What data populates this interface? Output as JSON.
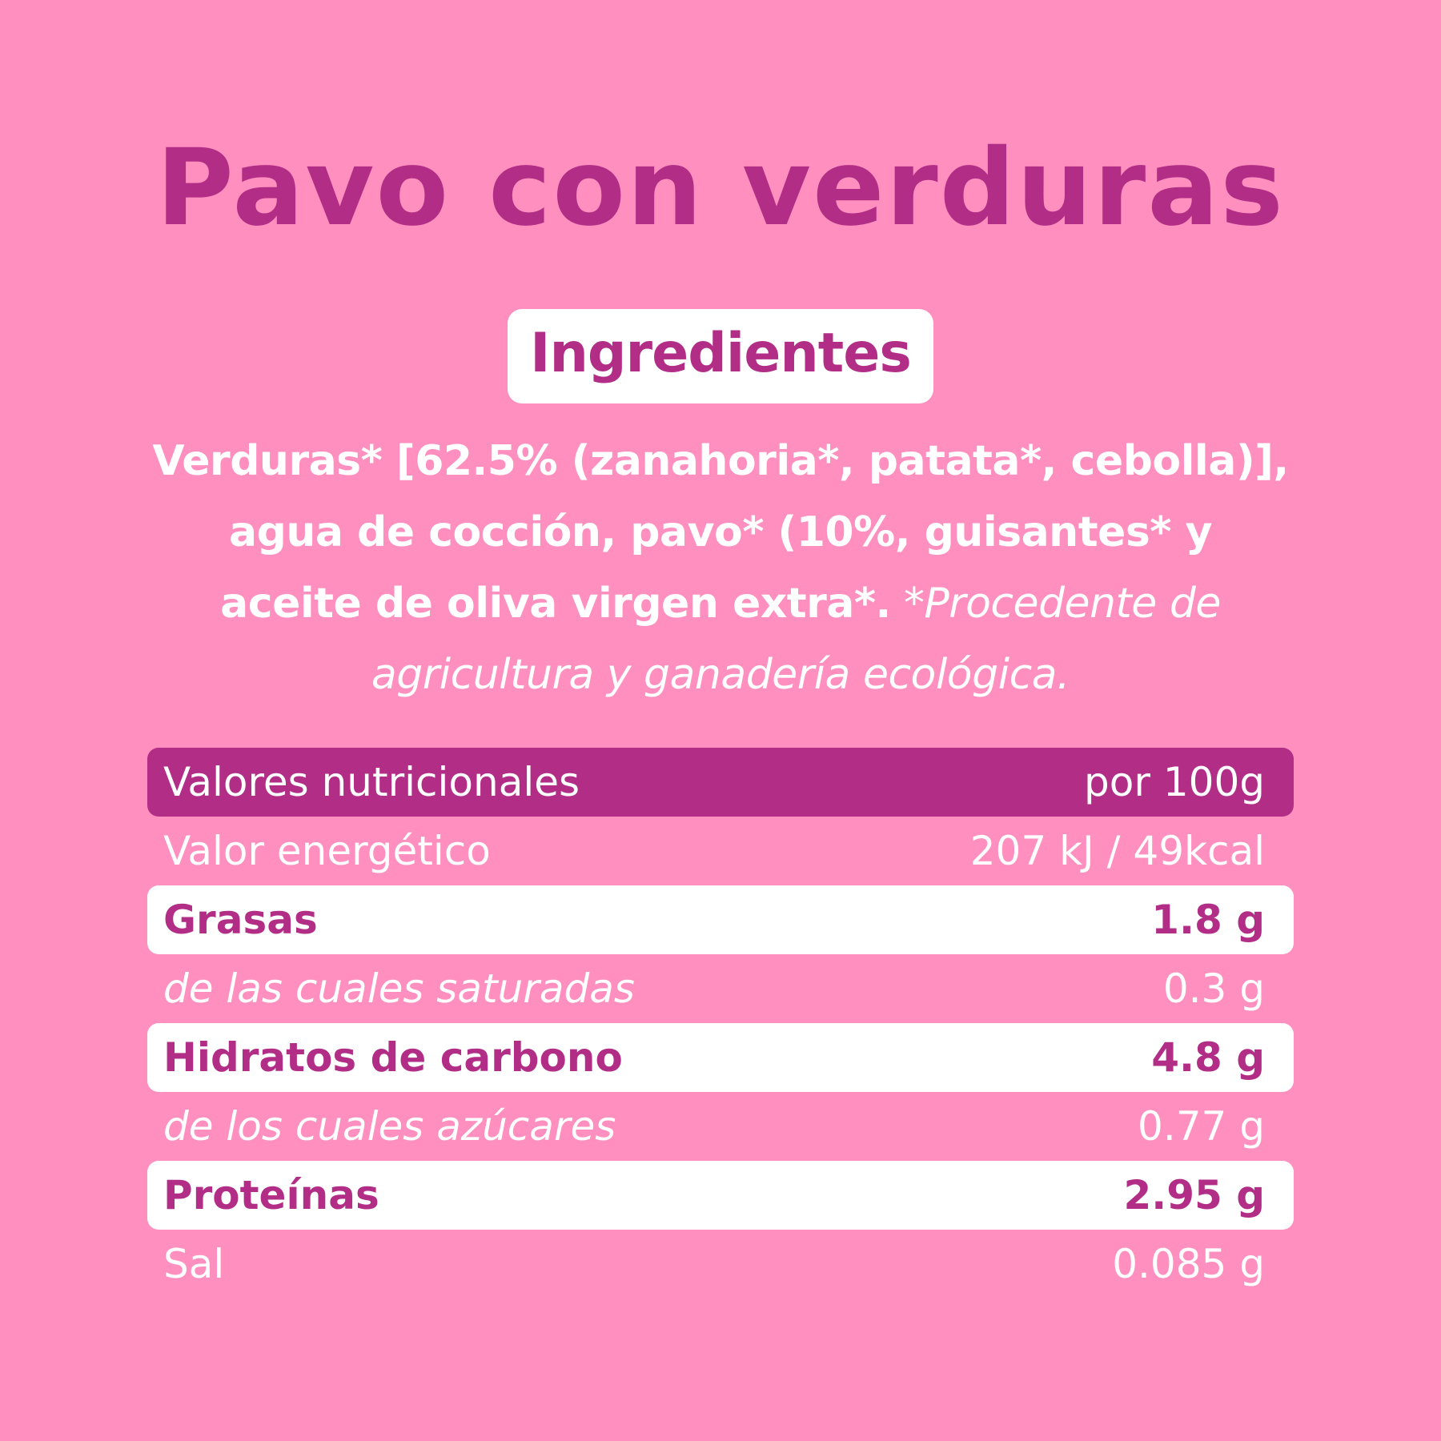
{
  "title": "Pavo con verduras",
  "ingredients_badge": "Ingredientes",
  "ingredients": {
    "text_bold": "Verduras* [62.5% (zanahoria*, patata*, cebolla)], agua de cocción, pavo* (10%, guisantes* y aceite de oliva virgen extra*.",
    "note_italic": " *Procedente de agricultura y ganadería ecológica."
  },
  "nutrition": {
    "header": {
      "label": "Valores nutricionales",
      "value": "por 100g"
    },
    "rows": [
      {
        "label": "Valor energético",
        "value": "207 kJ / 49kcal",
        "style": "plain"
      },
      {
        "label": "Grasas",
        "value": "1.8 g",
        "style": "highlight"
      },
      {
        "label": "de las cuales saturadas",
        "value": "0.3 g",
        "style": "sub"
      },
      {
        "label": "Hidratos de carbono",
        "value": "4.8 g",
        "style": "highlight"
      },
      {
        "label": "de los cuales azúcares",
        "value": "0.77 g",
        "style": "sub"
      },
      {
        "label": "Proteínas",
        "value": "2.95 g",
        "style": "highlight"
      },
      {
        "label": "Sal",
        "value": "0.085 g",
        "style": "plain"
      }
    ]
  },
  "colors": {
    "background": "#ff8fbf",
    "accent": "#b22d86",
    "white": "#ffffff"
  }
}
